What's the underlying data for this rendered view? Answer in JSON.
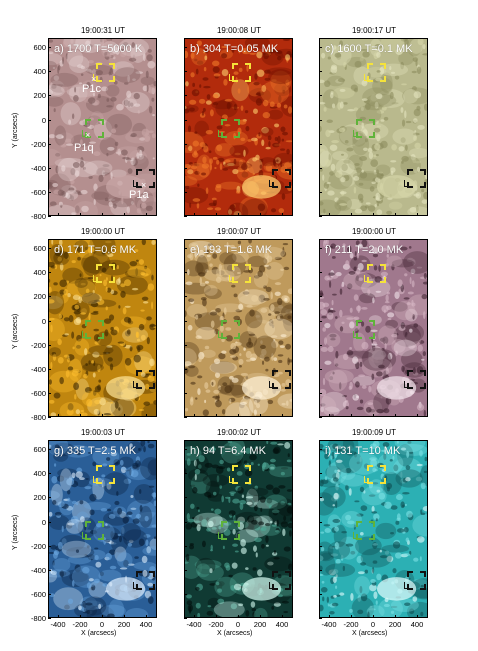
{
  "times": [
    "19:00:31 UT",
    "19:00:08 UT",
    "19:00:17 UT",
    "19:00:00 UT",
    "19:00:07 UT",
    "19:00:00 UT",
    "19:00:03 UT",
    "19:00:02 UT",
    "19:00:09 UT"
  ],
  "panels": [
    {
      "label": "a) 1700 T=5000 K",
      "bg": "#b48f8f",
      "colors": [
        "#7a5a5a",
        "#e8d6d6",
        "#c9a6a6"
      ]
    },
    {
      "label": "b) 304 T=0.05 MK",
      "bg": "#b22b0c",
      "colors": [
        "#6b0f00",
        "#f07a2a",
        "#ffd070"
      ]
    },
    {
      "label": "c) 1600 T=0.1 MK",
      "bg": "#b9b98d",
      "colors": [
        "#8c8c5e",
        "#e4e4c0",
        "#d6d6a8"
      ]
    },
    {
      "label": "d) 171 T=0.6 MK",
      "bg": "#c0860f",
      "colors": [
        "#3b2600",
        "#ffc02e",
        "#ffe69a"
      ]
    },
    {
      "label": "e) 193 T=1.6 MK",
      "bg": "#bf9a5c",
      "colors": [
        "#4d3315",
        "#e9cfa0",
        "#fff2d8"
      ]
    },
    {
      "label": "f) 211 T=2.0 MK",
      "bg": "#a0788d",
      "colors": [
        "#3e2130",
        "#d6b6c4",
        "#f4e6ec"
      ]
    },
    {
      "label": "g) 335 T=2.5 MK",
      "bg": "#2a5e97",
      "colors": [
        "#09203e",
        "#6aa6e0",
        "#dff0ff"
      ]
    },
    {
      "label": "h) 94 T=6.4 MK",
      "bg": "#103a33",
      "colors": [
        "#020d0b",
        "#4fa896",
        "#d8fff5"
      ]
    },
    {
      "label": "i) 131 T=10 MK",
      "bg": "#2cb0b4",
      "colors": [
        "#0d4c50",
        "#7ee2e6",
        "#e6ffff"
      ]
    }
  ],
  "annotations": {
    "p1c": "P1c",
    "p1q": "P1q",
    "p1a": "P1a"
  },
  "y_ticks": [
    "600",
    "400",
    "200",
    "0",
    "-200",
    "-400",
    "-600",
    "-800"
  ],
  "x_ticks": [
    "-400",
    "-200",
    "0",
    "200",
    "400"
  ],
  "y_axis_label": "Y (arcsecs)",
  "x_axis_label": "X (arcsecs)"
}
